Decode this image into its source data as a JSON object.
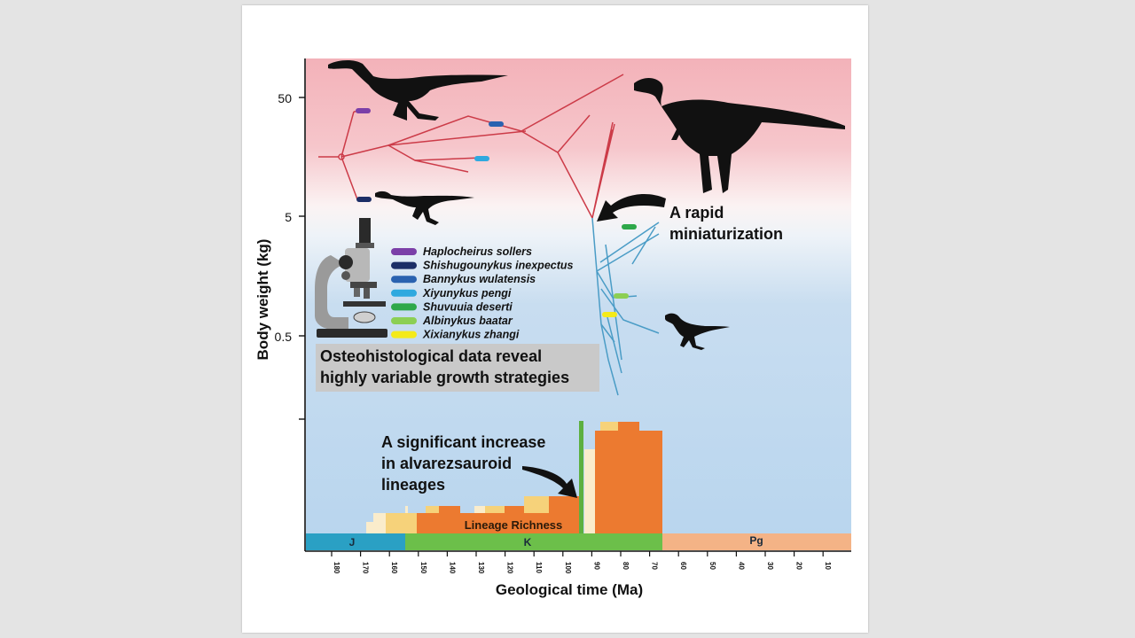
{
  "figure": {
    "y_axis_label": "Body weight (kg)",
    "y_ticks": [
      "50",
      "5",
      "0.5"
    ],
    "x_axis_label": "Geological time (Ma)",
    "x_ticks": [
      "180",
      "170",
      "160",
      "150",
      "140",
      "130",
      "120",
      "110",
      "100",
      "90",
      "80",
      "70",
      "60",
      "50",
      "40",
      "30",
      "20",
      "10"
    ],
    "periods": [
      {
        "label": "J",
        "color": "#2aa0c4"
      },
      {
        "label": "K",
        "color": "#6cbf4a"
      },
      {
        "label": "Pg",
        "color": "#f4b386"
      }
    ],
    "annotations": {
      "rapid_line1": "A rapid",
      "rapid_line2": "miniaturization",
      "increase_line1": "A significant increase",
      "increase_line2": "in alvarezsauroid",
      "increase_line3": "lineages",
      "osteo_line1": "Osteohistological data reveal",
      "osteo_line2": "highly variable growth strategies",
      "richness_label": "Lineage Richness"
    },
    "legend": [
      {
        "name": "Haplocheirus sollers",
        "color": "#7b3fa8"
      },
      {
        "name": "Shishugounykus inexpectus",
        "color": "#1c2e66"
      },
      {
        "name": "Bannykus wulatensis",
        "color": "#2a62b0"
      },
      {
        "name": "Xiyunykus pengi",
        "color": "#2fa9df"
      },
      {
        "name": "Shuvuuia deserti",
        "color": "#2ea84a"
      },
      {
        "name": "Albinykus baatar",
        "color": "#8ccf54"
      },
      {
        "name": "Xixianykus zhangi",
        "color": "#f4ea1a"
      }
    ],
    "colors": {
      "heavy_top": "#f3b2b9",
      "light_bottom": "#b8d5ee",
      "tree_large": "#cc3b48",
      "tree_small": "#4a9cc6",
      "richness_main": "#ec7a30",
      "richness_light": "#f6d27a",
      "richness_pale": "#faeccb",
      "event_line": "#5cb040"
    }
  }
}
